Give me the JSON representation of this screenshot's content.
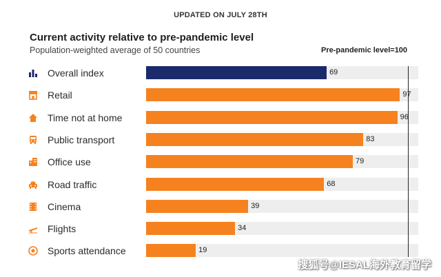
{
  "header": {
    "updated": "UPDATED ON JULY 28TH",
    "title": "Current activity relative to pre-pandemic level",
    "subtitle": "Population-weighted average of 50 countries",
    "reference_label": "Pre-pandemic level=100"
  },
  "watermark": "搜狐号@IESAL海外教育留学",
  "colors": {
    "overall": "#1b2a6b",
    "category": "#f5821f",
    "track": "#eeeeee",
    "icon": "#f5821f",
    "icon_overall": "#1b2a6b"
  },
  "chart_data": {
    "type": "bar",
    "orientation": "horizontal",
    "title": "Current activity relative to pre-pandemic level",
    "subtitle": "Population-weighted average of 50 countries",
    "reference_line": {
      "value": 100,
      "label": "Pre-pandemic level=100"
    },
    "xlim": [
      0,
      104
    ],
    "categories": [
      "Overall index",
      "Retail",
      "Time not at home",
      "Public transport",
      "Office use",
      "Road traffic",
      "Cinema",
      "Flights",
      "Sports attendance"
    ],
    "values": [
      69,
      97,
      96,
      83,
      79,
      68,
      39,
      34,
      19
    ],
    "icons": [
      "bar-chart-icon",
      "storefront-icon",
      "house-icon",
      "bus-icon",
      "office-building-icon",
      "car-icon",
      "film-strip-icon",
      "airplane-icon",
      "football-icon"
    ],
    "grid": false
  }
}
